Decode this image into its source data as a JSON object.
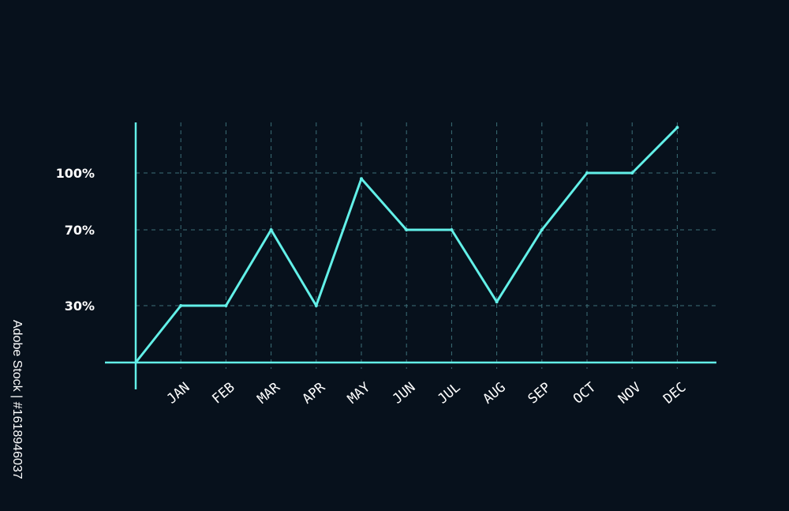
{
  "side_text": "Adobe Stock | #1618946037",
  "watermark_text": "Adobe Stock",
  "colors": {
    "background": "#07111c",
    "line": "#62f0e8",
    "grid": "#3c6f78",
    "text": "#ffffff"
  },
  "chart_data": {
    "type": "line",
    "title": "",
    "xlabel": "",
    "ylabel": "",
    "categories": [
      "JAN",
      "FEB",
      "MAR",
      "APR",
      "MAY",
      "JUN",
      "JUL",
      "AUG",
      "SEP",
      "OCT",
      "NOV",
      "DEC"
    ],
    "origin": 0,
    "values": [
      30,
      30,
      70,
      30,
      97,
      70,
      70,
      32,
      70,
      100,
      100,
      124
    ],
    "y_ticks": [
      30,
      70,
      100
    ],
    "y_tick_labels": [
      "30%",
      "70%",
      "100%"
    ],
    "ylim": [
      0,
      120
    ],
    "grid": true,
    "legend": "none"
  }
}
